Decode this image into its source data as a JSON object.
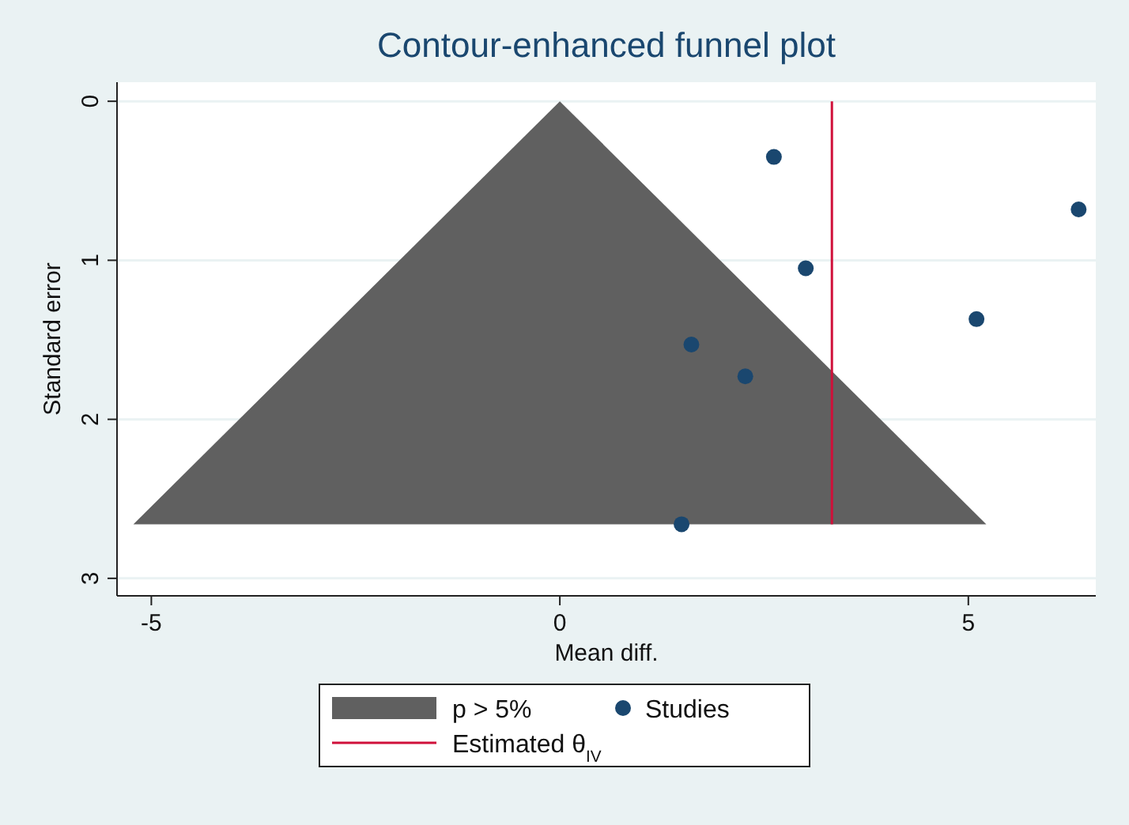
{
  "chart_data": {
    "type": "scatter",
    "title": "Contour-enhanced funnel plot",
    "xlabel": "Mean diff.",
    "ylabel": "Standard error",
    "xlim": [
      -5.42,
      6.56
    ],
    "xticks": [
      -5,
      0,
      5
    ],
    "ylim": [
      3.11,
      -0.12
    ],
    "yticks": [
      0,
      1,
      2,
      3
    ],
    "grid": "y",
    "legend": "bottom",
    "series": [
      {
        "name": "p > 5%",
        "type": "area",
        "marker": "none",
        "color": "#606060",
        "x": [
          -5.22,
          0,
          5.22
        ],
        "values": [
          2.66,
          0,
          2.66
        ]
      },
      {
        "name": "Studies",
        "marker": "circle",
        "color": "#1a476f",
        "x": [
          2.62,
          6.35,
          3.01,
          5.1,
          1.61,
          2.27,
          1.49
        ],
        "values": [
          0.35,
          0.68,
          1.05,
          1.37,
          1.53,
          1.73,
          2.66
        ]
      },
      {
        "name": "Estimated θ$_{IV}$",
        "type": "line",
        "marker": "none",
        "color": "#d0103a",
        "x": [
          3.33,
          3.33
        ],
        "values": [
          0,
          2.66
        ]
      }
    ]
  }
}
